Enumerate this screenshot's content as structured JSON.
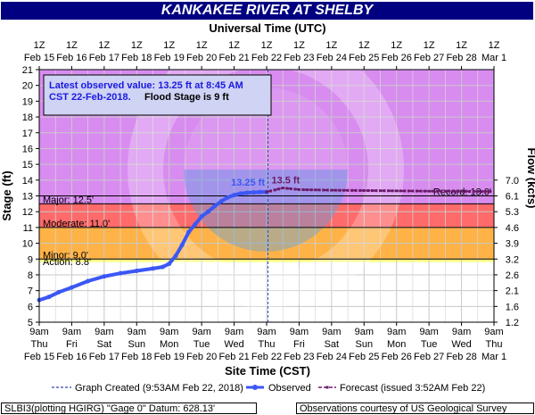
{
  "header": {
    "title": "KANKAKEE RIVER AT SHELBY"
  },
  "footer": {
    "left": "SLBI3(plotting HGIRG) \"Gage 0\" Datum: 628.13'",
    "right": "Observations courtesy of US Geological Survey"
  },
  "colors": {
    "banner": "#000080",
    "major": "#d88cf0",
    "moderate": "#ff6a6a",
    "minor": "#ffb347",
    "action": "#ffff80",
    "observed": "#3b57f5",
    "forecast": "#6a1a6a",
    "graph_created": "#3344aa",
    "info_text": "#1a1ae0"
  },
  "chart_data": {
    "type": "line",
    "top_axis_label": "Universal Time (UTC)",
    "top_ticks_time": [
      "1Z",
      "1Z",
      "1Z",
      "1Z",
      "1Z",
      "1Z",
      "1Z",
      "1Z",
      "1Z",
      "1Z",
      "1Z",
      "1Z",
      "1Z",
      "1Z",
      "1Z"
    ],
    "top_ticks_date": [
      "Feb 15",
      "Feb 16",
      "Feb 17",
      "Feb 18",
      "Feb 19",
      "Feb 20",
      "Feb 21",
      "Feb 22",
      "Feb 23",
      "Feb 24",
      "Feb 25",
      "Feb 26",
      "Feb 27",
      "Feb 28",
      "Mar 1"
    ],
    "bottom_ticks_time": [
      "9am",
      "9am",
      "9am",
      "9am",
      "9am",
      "9am",
      "9am",
      "9am",
      "9am",
      "9am",
      "9am",
      "9am",
      "9am",
      "9am",
      "9am"
    ],
    "bottom_ticks_day": [
      "Thu",
      "Fri",
      "Sat",
      "Sun",
      "Mon",
      "Tue",
      "Wed",
      "Thu",
      "Fri",
      "Sat",
      "Sun",
      "Mon",
      "Tue",
      "Wed",
      "Thu"
    ],
    "bottom_ticks_date": [
      "Feb 15",
      "Feb 16",
      "Feb 17",
      "Feb 18",
      "Feb 19",
      "Feb 20",
      "Feb 21",
      "Feb 22",
      "Feb 23",
      "Feb 24",
      "Feb 25",
      "Feb 26",
      "Feb 27",
      "Feb 28",
      "Mar 1"
    ],
    "xlabel": "Site Time (CST)",
    "ylabel": "Stage (ft)",
    "ylabel_right": "Flow (kcfs)",
    "ylim": [
      5,
      21
    ],
    "xlim": [
      "Feb 15 9am",
      "Mar 1 9am"
    ],
    "y_ticks": [
      5,
      6,
      7,
      8,
      9,
      10,
      11,
      12,
      13,
      14,
      15,
      16,
      17,
      18,
      19,
      20,
      21
    ],
    "right_ticks": [
      {
        "stage": 5.0,
        "label": "1.2"
      },
      {
        "stage": 6.0,
        "label": "1.6"
      },
      {
        "stage": 7.0,
        "label": "2.1"
      },
      {
        "stage": 8.0,
        "label": "2.6"
      },
      {
        "stage": 9.0,
        "label": "3.2"
      },
      {
        "stage": 10.0,
        "label": "3.9"
      },
      {
        "stage": 11.0,
        "label": "4.6"
      },
      {
        "stage": 12.0,
        "label": "5.3"
      },
      {
        "stage": 13.0,
        "label": "6.1"
      },
      {
        "stage": 14.0,
        "label": "7.0"
      }
    ],
    "flood_categories": [
      {
        "name": "Major",
        "stage": 12.5,
        "label": "Major: 12.5'"
      },
      {
        "name": "Moderate",
        "stage": 11.0,
        "label": "Moderate: 11.0'"
      },
      {
        "name": "Minor",
        "stage": 9.0,
        "label": "Minor: 9.0'"
      },
      {
        "name": "Action",
        "stage": 8.8,
        "label": "Action: 8.8'"
      }
    ],
    "record": {
      "stage": 13.0,
      "label": "Record: 13.0'"
    },
    "info_line1": "Latest observed value: 13.25 ft at 8:45 AM",
    "info_line2": "CST 22-Feb-2018.",
    "info_line3": "Flood Stage is 9 ft",
    "observed_label": "13.25 ft",
    "forecast_label": "13.5 ft",
    "observed": {
      "day_offset": [
        0,
        0.3,
        0.6,
        1,
        1.5,
        2,
        2.5,
        3,
        3.5,
        3.8,
        4,
        4.2,
        4.4,
        4.6,
        4.8,
        5,
        5.2,
        5.4,
        5.6,
        5.8,
        6,
        6.2,
        6.4,
        6.6,
        6.8,
        7
      ],
      "stage": [
        6.4,
        6.6,
        6.9,
        7.2,
        7.6,
        7.9,
        8.1,
        8.25,
        8.4,
        8.5,
        8.7,
        9.2,
        9.9,
        10.7,
        11.2,
        11.7,
        12.0,
        12.35,
        12.65,
        12.9,
        13.05,
        13.15,
        13.2,
        13.22,
        13.24,
        13.25
      ]
    },
    "forecast": {
      "day_offset": [
        7,
        7.5,
        8,
        8.5,
        9,
        9.5,
        10,
        10.5,
        11,
        11.5,
        12,
        12.5,
        13,
        13.5,
        14
      ],
      "stage": [
        13.25,
        13.5,
        13.4,
        13.38,
        13.36,
        13.35,
        13.34,
        13.33,
        13.32,
        13.31,
        13.3,
        13.3,
        13.29,
        13.28,
        13.28
      ]
    },
    "graph_created_day_offset": 7.04,
    "legend": {
      "graph_created": "Graph Created (9:53AM Feb 22, 2018)",
      "observed": "Observed",
      "forecast": "Forecast (issued 3:52AM Feb 22)"
    }
  }
}
